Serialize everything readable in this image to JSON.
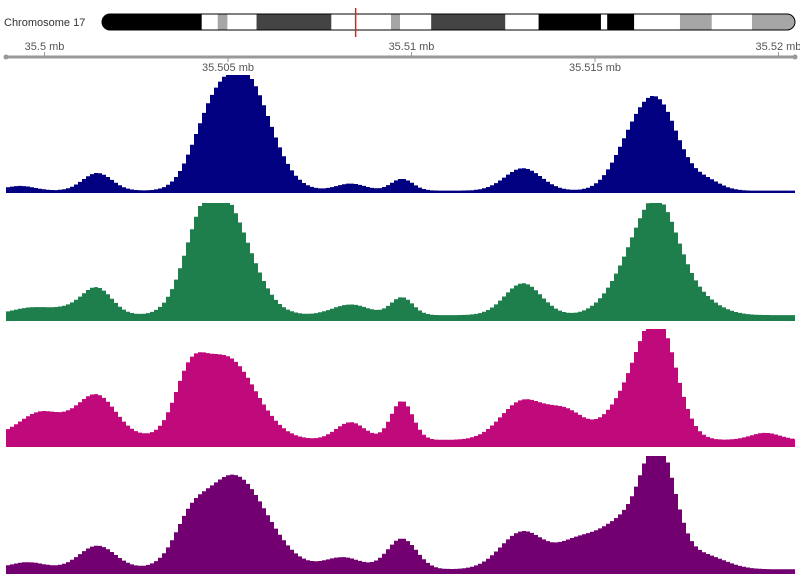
{
  "ideogram": {
    "label": "Chromosome 17",
    "marker_color": "#e02020",
    "marker_position_frac": 0.366,
    "bands": [
      {
        "start": 0.0,
        "end": 0.144,
        "stain": "black"
      },
      {
        "start": 0.144,
        "end": 0.167,
        "stain": "white"
      },
      {
        "start": 0.167,
        "end": 0.181,
        "stain": "lightgray"
      },
      {
        "start": 0.181,
        "end": 0.223,
        "stain": "white"
      },
      {
        "start": 0.223,
        "end": 0.331,
        "stain": "darkgray"
      },
      {
        "start": 0.331,
        "end": 0.417,
        "stain": "white"
      },
      {
        "start": 0.417,
        "end": 0.43,
        "stain": "lightgray"
      },
      {
        "start": 0.43,
        "end": 0.475,
        "stain": "white"
      },
      {
        "start": 0.475,
        "end": 0.582,
        "stain": "darkgray"
      },
      {
        "start": 0.582,
        "end": 0.63,
        "stain": "white"
      },
      {
        "start": 0.63,
        "end": 0.72,
        "stain": "black"
      },
      {
        "start": 0.72,
        "end": 0.729,
        "stain": "white"
      },
      {
        "start": 0.729,
        "end": 0.768,
        "stain": "black"
      },
      {
        "start": 0.768,
        "end": 0.834,
        "stain": "white"
      },
      {
        "start": 0.834,
        "end": 0.88,
        "stain": "lightgray"
      },
      {
        "start": 0.88,
        "end": 0.938,
        "stain": "white"
      },
      {
        "start": 0.938,
        "end": 1.0,
        "stain": "lightgray"
      }
    ]
  },
  "chart_data": {
    "type": "area",
    "xlim": [
      35.49895,
      35.52045
    ],
    "x_major_ticks": [
      {
        "value": 35.5,
        "label": "35.5 mb"
      },
      {
        "value": 35.51,
        "label": "35.51 mb"
      },
      {
        "value": 35.52,
        "label": "35.52 mb"
      }
    ],
    "x_minor_ticks": [
      {
        "value": 35.505,
        "label": "35.505 mb"
      },
      {
        "value": 35.515,
        "label": "35.515 mb"
      }
    ],
    "ylim": [
      0,
      1
    ],
    "series": [
      {
        "color": "#000080",
        "peaks": [
          {
            "center": 35.50544,
            "width": 0.0007,
            "height": 0.97
          },
          {
            "center": 35.50444,
            "width": 0.0005,
            "height": 0.38
          },
          {
            "center": 35.51674,
            "width": 0.00055,
            "height": 0.7
          },
          {
            "center": 35.51594,
            "width": 0.0005,
            "height": 0.3
          },
          {
            "center": 35.50144,
            "width": 0.0004,
            "height": 0.15
          },
          {
            "center": 35.51304,
            "width": 0.0005,
            "height": 0.19
          },
          {
            "center": 35.50974,
            "width": 0.0003,
            "height": 0.1
          },
          {
            "center": 35.50834,
            "width": 0.0004,
            "height": 0.06
          },
          {
            "center": 35.49934,
            "width": 0.0004,
            "height": 0.04
          },
          {
            "center": 35.51804,
            "width": 0.0004,
            "height": 0.08
          }
        ],
        "baseline": 0.02
      },
      {
        "color": "#1e7e4c",
        "peaks": [
          {
            "center": 35.50494,
            "width": 0.0007,
            "height": 0.87
          },
          {
            "center": 35.50424,
            "width": 0.0005,
            "height": 0.4
          },
          {
            "center": 35.51674,
            "width": 0.00055,
            "height": 0.82
          },
          {
            "center": 35.51594,
            "width": 0.0006,
            "height": 0.32
          },
          {
            "center": 35.50144,
            "width": 0.0004,
            "height": 0.2
          },
          {
            "center": 35.51304,
            "width": 0.0005,
            "height": 0.27
          },
          {
            "center": 35.50974,
            "width": 0.0003,
            "height": 0.15
          },
          {
            "center": 35.50834,
            "width": 0.0005,
            "height": 0.09
          },
          {
            "center": 35.49954,
            "width": 0.0005,
            "height": 0.05
          },
          {
            "center": 35.50074,
            "width": 0.0007,
            "height": 0.06
          },
          {
            "center": 35.51774,
            "width": 0.0006,
            "height": 0.14
          }
        ],
        "baseline": 0.05
      },
      {
        "color": "#c0097a",
        "peaks": [
          {
            "center": 35.50494,
            "width": 0.0008,
            "height": 0.7
          },
          {
            "center": 35.50394,
            "width": 0.0004,
            "height": 0.35
          },
          {
            "center": 35.51674,
            "width": 0.0005,
            "height": 0.89
          },
          {
            "center": 35.51594,
            "width": 0.0006,
            "height": 0.35
          },
          {
            "center": 35.50144,
            "width": 0.0005,
            "height": 0.28
          },
          {
            "center": 35.51304,
            "width": 0.0006,
            "height": 0.33
          },
          {
            "center": 35.50974,
            "width": 0.0003,
            "height": 0.33
          },
          {
            "center": 35.50834,
            "width": 0.0004,
            "height": 0.15
          },
          {
            "center": 35.49984,
            "width": 0.0005,
            "height": 0.12
          },
          {
            "center": 35.50054,
            "width": 0.0012,
            "height": 0.14
          },
          {
            "center": 35.51424,
            "width": 0.0005,
            "height": 0.22
          },
          {
            "center": 35.51964,
            "width": 0.0004,
            "height": 0.06
          }
        ],
        "baseline": 0.06
      },
      {
        "color": "#730070",
        "peaks": [
          {
            "center": 35.50514,
            "width": 0.0009,
            "height": 0.8
          },
          {
            "center": 35.50394,
            "width": 0.0004,
            "height": 0.2
          },
          {
            "center": 35.51674,
            "width": 0.00045,
            "height": 0.92
          },
          {
            "center": 35.51574,
            "width": 0.0007,
            "height": 0.4
          },
          {
            "center": 35.50144,
            "width": 0.0005,
            "height": 0.2
          },
          {
            "center": 35.51304,
            "width": 0.0006,
            "height": 0.32
          },
          {
            "center": 35.50974,
            "width": 0.0004,
            "height": 0.26
          },
          {
            "center": 35.51444,
            "width": 0.0005,
            "height": 0.18
          },
          {
            "center": 35.50814,
            "width": 0.0005,
            "height": 0.1
          },
          {
            "center": 35.49954,
            "width": 0.0005,
            "height": 0.06
          },
          {
            "center": 35.51794,
            "width": 0.0006,
            "height": 0.12
          }
        ],
        "baseline": 0.04
      }
    ]
  },
  "colors": {
    "stain_black": "#000000",
    "stain_darkgray": "#444444",
    "stain_lightgray": "#a6a6a6",
    "stain_white": "#ffffff",
    "axis": "#999999"
  }
}
